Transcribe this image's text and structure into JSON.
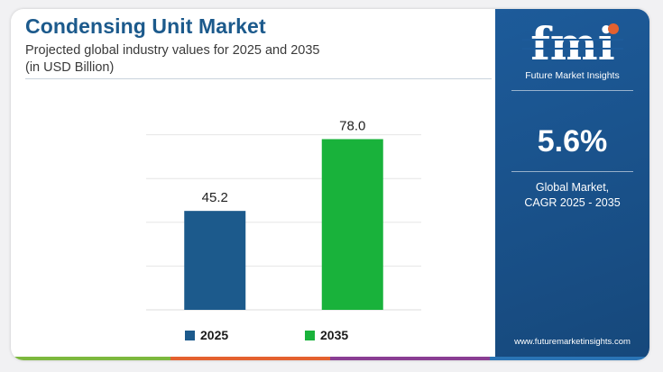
{
  "header": {
    "title": "Condensing Unit Market",
    "subtitle_line1": "Projected global industry values for 2025 and 2035",
    "subtitle_line2": "(in USD Billion)"
  },
  "chart_data": {
    "type": "bar",
    "categories": [
      "2025",
      "2035"
    ],
    "values": [
      45.2,
      78.0
    ],
    "value_labels": [
      "45.2",
      "78.0"
    ],
    "colors": [
      "#1c5a8c",
      "#19b23b"
    ],
    "title": "Condensing Unit Market",
    "ylim": [
      0,
      100
    ],
    "grid": true,
    "legend": "bottom",
    "legend_entries": [
      "2025",
      "2035"
    ]
  },
  "sidebar": {
    "logo_text": "fmi",
    "brand_name": "Future Market Insights",
    "cagr_value": "5.6%",
    "cagr_label_line1": "Global Market,",
    "cagr_label_line2": "CAGR 2025 - 2035",
    "website": "www.futuremarketinsights.com"
  }
}
